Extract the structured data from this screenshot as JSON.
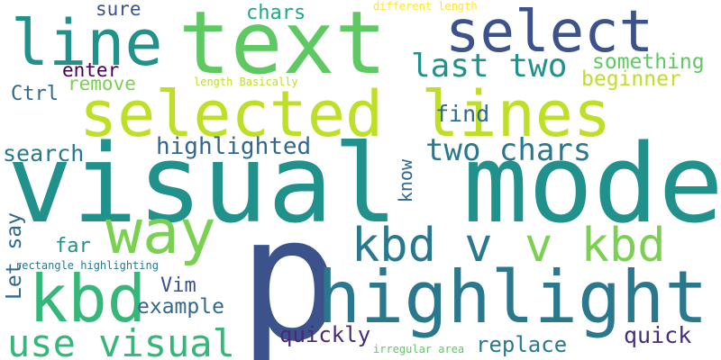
{
  "words": [
    {
      "text": "text",
      "color": "#5ec962"
    },
    {
      "text": "select",
      "color": "#3b528b"
    },
    {
      "text": "line",
      "color": "#21918c"
    },
    {
      "text": "selected lines",
      "color": "#bddf26"
    },
    {
      "text": "visual mode",
      "color": "#21918c"
    },
    {
      "text": "p",
      "color": "#3b528b"
    },
    {
      "text": "highlight",
      "color": "#2a788e"
    },
    {
      "text": "kbd v",
      "color": "#2a788e"
    },
    {
      "text": "v kbd",
      "color": "#7ad151"
    },
    {
      "text": "way",
      "color": "#7ad151"
    },
    {
      "text": "kbd",
      "color": "#35b779"
    },
    {
      "text": "use visual",
      "color": "#35b779"
    },
    {
      "text": "last two",
      "color": "#21918c"
    },
    {
      "text": "two chars",
      "color": "#2a788e"
    },
    {
      "text": "something",
      "color": "#5ec962"
    },
    {
      "text": "beginner",
      "color": "#bddf26"
    },
    {
      "text": "find",
      "color": "#31688e"
    },
    {
      "text": "highlighted",
      "color": "#31688e"
    },
    {
      "text": "search",
      "color": "#2a788e"
    },
    {
      "text": "chars",
      "color": "#22a884"
    },
    {
      "text": "sure",
      "color": "#3b528b"
    },
    {
      "text": "enter",
      "color": "#440154"
    },
    {
      "text": "remove",
      "color": "#7ad151"
    },
    {
      "text": "Ctrl",
      "color": "#31688e"
    },
    {
      "text": "know",
      "color": "#31688e"
    },
    {
      "text": "far",
      "color": "#21918c"
    },
    {
      "text": "Let say",
      "color": "#31688e"
    },
    {
      "text": "Vim",
      "color": "#3b528b"
    },
    {
      "text": "example",
      "color": "#31688e"
    },
    {
      "text": "quickly",
      "color": "#482878"
    },
    {
      "text": "replace",
      "color": "#2a788e"
    },
    {
      "text": "quick",
      "color": "#472d7b"
    },
    {
      "text": "different length",
      "color": "#fde725"
    },
    {
      "text": "length Basically",
      "color": "#bddf26"
    },
    {
      "text": "rectangle highlighting",
      "color": "#2a788e"
    },
    {
      "text": "irregular area",
      "color": "#5ec962"
    }
  ]
}
